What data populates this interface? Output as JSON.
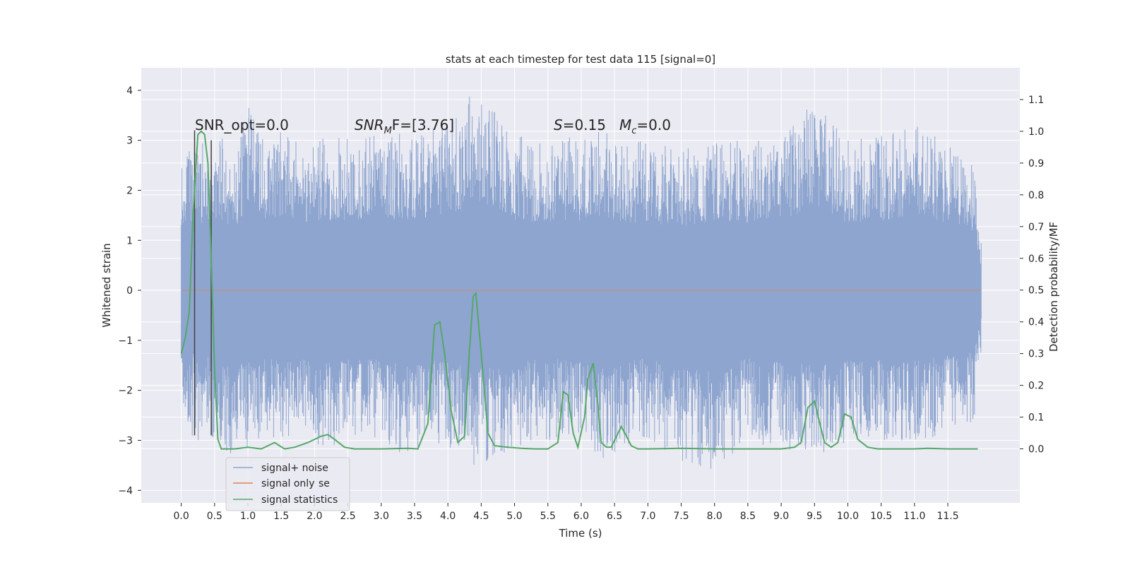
{
  "colors": {
    "plot_bg": "#eaeaf2",
    "grid": "#ffffff",
    "noise": "#8ea5cf",
    "signal_only": "#dd8452",
    "stats": "#55a868",
    "markers": "#404040"
  },
  "chart_data": {
    "type": "line",
    "title": "stats at each timestep for test data 115 [signal=0]",
    "xlabel": "Time (s)",
    "ylabel": "Whitened strain",
    "y2label": "Detection probability/MF",
    "xlim": [
      -0.6,
      12.58
    ],
    "ylim": [
      -4.25,
      4.45
    ],
    "y2lim": [
      -0.17,
      1.2
    ],
    "grid": true,
    "x_ticks": [
      0.0,
      0.5,
      1.0,
      1.5,
      2.0,
      2.5,
      3.0,
      3.5,
      4.0,
      4.5,
      5.0,
      5.5,
      6.0,
      6.5,
      7.0,
      7.5,
      8.0,
      8.5,
      9.0,
      9.5,
      10.0,
      10.5,
      11.0,
      11.5
    ],
    "x_tick_labels": [
      "0.0",
      "0.5",
      "1.0",
      "1.5",
      "2.0",
      "2.5",
      "3.0",
      "3.5",
      "4.0",
      "4.5",
      "5.0",
      "5.5",
      "6.0",
      "6.5",
      "7.0",
      "7.5",
      "8.0",
      "8.5",
      "9.0",
      "9.5",
      "10.0",
      "10.5",
      "11.0",
      "11.5"
    ],
    "y_ticks": [
      4,
      3,
      2,
      1,
      0,
      -1,
      -2,
      -3,
      -4
    ],
    "y_tick_labels": [
      "4",
      "3",
      "2",
      "1",
      "0",
      "−1",
      "−2",
      "−3",
      "−4"
    ],
    "y2_ticks": [
      1.1,
      1.0,
      0.9,
      0.8,
      0.7,
      0.6,
      0.5,
      0.4,
      0.3,
      0.2,
      0.1,
      0.0
    ],
    "y2_tick_labels": [
      "1.1",
      "1.0",
      "0.9",
      "0.8",
      "0.7",
      "0.6",
      "0.5",
      "0.4",
      "0.3",
      "0.2",
      "0.1",
      "0.0"
    ],
    "annotations": {
      "snr_opt": "SNR_opt=0.0",
      "snr_mf_sym": "SNR",
      "snr_mf_sub": "M",
      "snr_mf_rest": "F=[3.76]",
      "s_sym": "S",
      "s_rest": "=0.15",
      "mc_sym": "M",
      "mc_sub": "c",
      "mc_rest": "=0.0"
    },
    "legend": {
      "position": "lower-left",
      "entries": [
        "signal+ noise",
        "signal only",
        "signal statistics"
      ],
      "ghost_text": "se"
    },
    "series": [
      {
        "name": "signal+ noise",
        "axis": "left",
        "x_range": [
          0.0,
          12.0
        ],
        "envelope": {
          "x": [
            0.0,
            0.1,
            0.2,
            0.3,
            0.4,
            0.5,
            0.6,
            0.8,
            1.0,
            1.25,
            1.5,
            2.0,
            2.25,
            2.6,
            3.0,
            3.4,
            3.8,
            4.2,
            4.4,
            5.0,
            5.5,
            6.0,
            6.3,
            6.6,
            7.0,
            7.5,
            8.0,
            8.5,
            9.0,
            9.5,
            10.0,
            10.5,
            11.0,
            11.5,
            11.9,
            12.0
          ],
          "upper": [
            2.9,
            2.8,
            2.7,
            3.0,
            2.9,
            2.8,
            3.1,
            2.7,
            3.8,
            3.1,
            3.2,
            3.0,
            3.1,
            3.0,
            3.2,
            3.1,
            3.3,
            3.5,
            4.1,
            3.1,
            3.0,
            3.1,
            3.2,
            3.0,
            3.0,
            2.8,
            3.1,
            3.0,
            3.0,
            3.8,
            3.0,
            3.1,
            3.3,
            3.0,
            2.6,
            1.0
          ],
          "lower": [
            -2.5,
            -3.3,
            -2.7,
            -3.5,
            -2.8,
            -3.0,
            -3.4,
            -3.3,
            -3.2,
            -3.0,
            -3.0,
            -3.1,
            -3.2,
            -2.9,
            -3.0,
            -3.4,
            -3.1,
            -3.3,
            -3.5,
            -3.2,
            -3.0,
            -3.1,
            -3.4,
            -3.2,
            -3.0,
            -3.5,
            -3.6,
            -3.0,
            -3.2,
            -3.3,
            -3.1,
            -3.0,
            -3.1,
            -2.9,
            -2.6,
            -1.2
          ]
        }
      },
      {
        "name": "signal only",
        "axis": "left",
        "x": [
          0.0,
          12.0
        ],
        "values": [
          0.0,
          0.0
        ]
      },
      {
        "name": "signal statistics",
        "axis": "right",
        "x": [
          0.0,
          0.06,
          0.12,
          0.18,
          0.25,
          0.3,
          0.35,
          0.4,
          0.45,
          0.5,
          0.55,
          0.6,
          0.65,
          0.8,
          1.0,
          1.2,
          1.4,
          1.55,
          1.7,
          1.9,
          2.1,
          2.2,
          2.3,
          2.45,
          2.6,
          2.8,
          3.0,
          3.4,
          3.55,
          3.7,
          3.8,
          3.88,
          3.95,
          4.05,
          4.15,
          4.25,
          4.32,
          4.38,
          4.42,
          4.5,
          4.6,
          4.7,
          4.9,
          5.1,
          5.3,
          5.5,
          5.65,
          5.73,
          5.8,
          5.88,
          5.95,
          6.05,
          6.1,
          6.18,
          6.25,
          6.3,
          6.38,
          6.45,
          6.6,
          6.68,
          6.75,
          6.85,
          7.0,
          7.5,
          8.0,
          8.5,
          9.0,
          9.2,
          9.3,
          9.4,
          9.5,
          9.58,
          9.65,
          9.75,
          9.85,
          9.95,
          10.05,
          10.15,
          10.3,
          10.45,
          10.8,
          11.0,
          11.2,
          11.5,
          11.95
        ],
        "values": [
          0.3,
          0.35,
          0.43,
          0.75,
          0.99,
          1.0,
          0.99,
          0.9,
          0.6,
          0.25,
          0.03,
          0.0,
          0.0,
          0.0,
          0.005,
          0.0,
          0.02,
          0.0,
          0.005,
          0.02,
          0.04,
          0.045,
          0.03,
          0.005,
          0.0,
          0.0,
          0.0,
          0.002,
          0.0,
          0.08,
          0.39,
          0.4,
          0.3,
          0.12,
          0.02,
          0.04,
          0.3,
          0.48,
          0.49,
          0.3,
          0.05,
          0.01,
          0.005,
          0.002,
          0.0,
          0.0,
          0.02,
          0.18,
          0.17,
          0.05,
          0.005,
          0.1,
          0.22,
          0.27,
          0.14,
          0.02,
          0.005,
          0.005,
          0.07,
          0.04,
          0.01,
          0.0,
          0.0,
          0.002,
          0.0,
          0.0,
          0.0,
          0.005,
          0.02,
          0.13,
          0.15,
          0.08,
          0.02,
          0.005,
          0.02,
          0.11,
          0.1,
          0.03,
          0.005,
          0.0,
          0.0,
          0.0,
          0.002,
          0.0,
          0.0
        ]
      }
    ],
    "markers": {
      "x": [
        0.2,
        0.45
      ],
      "y_from": -2.9,
      "y_to": [
        3.2,
        3.0
      ]
    }
  }
}
